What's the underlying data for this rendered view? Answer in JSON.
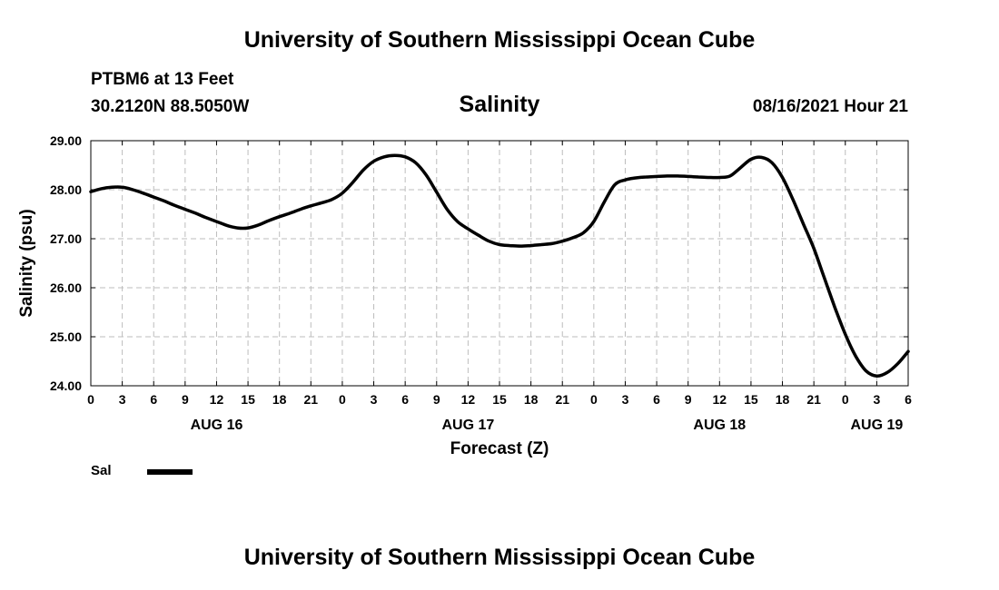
{
  "header": {
    "top_title": "University of Southern Mississippi Ocean Cube",
    "station": "PTBM6 at 13 Feet",
    "coords": "30.2120N  88.5050W",
    "variable_title": "Salinity",
    "timestamp": "08/16/2021 Hour 21",
    "bottom_title": "University of Southern Mississippi Ocean Cube"
  },
  "legend": {
    "label": "Sal",
    "color": "#000000"
  },
  "chart_data": {
    "type": "line",
    "title": "Salinity",
    "xlabel": "Forecast (Z)",
    "ylabel": "Salinity (psu)",
    "xlim": [
      0,
      78
    ],
    "ylim": [
      24,
      29
    ],
    "grid": true,
    "x_ticks": [
      0,
      3,
      6,
      9,
      12,
      15,
      18,
      21,
      24,
      27,
      30,
      33,
      36,
      39,
      42,
      45,
      48,
      51,
      54,
      57,
      60,
      63,
      66,
      69,
      72,
      75,
      78
    ],
    "x_tick_labels": [
      "0",
      "3",
      "6",
      "9",
      "12",
      "15",
      "18",
      "21",
      "0",
      "3",
      "6",
      "9",
      "12",
      "15",
      "18",
      "21",
      "0",
      "3",
      "6",
      "9",
      "12",
      "15",
      "18",
      "21",
      "0",
      "3",
      "6"
    ],
    "y_ticks": [
      24,
      25,
      26,
      27,
      28,
      29
    ],
    "y_tick_labels": [
      "24.00",
      "25.00",
      "26.00",
      "27.00",
      "28.00",
      "29.00"
    ],
    "day_labels": [
      {
        "label": "AUG 16",
        "x": 12
      },
      {
        "label": "AUG 17",
        "x": 36
      },
      {
        "label": "AUG 18",
        "x": 60
      },
      {
        "label": "AUG 19",
        "x": 75
      }
    ],
    "series": [
      {
        "name": "Sal",
        "x": [
          0,
          1,
          2,
          3,
          4,
          5,
          6,
          7,
          8,
          9,
          10,
          11,
          12,
          13,
          14,
          15,
          16,
          17,
          18,
          19,
          20,
          21,
          22,
          23,
          24,
          25,
          26,
          27,
          28,
          29,
          30,
          31,
          32,
          33,
          34,
          35,
          36,
          37,
          38,
          39,
          40,
          41,
          42,
          43,
          44,
          45,
          46,
          47,
          48,
          49,
          50,
          51,
          52,
          53,
          54,
          55,
          56,
          57,
          58,
          59,
          60,
          61,
          62,
          63,
          64,
          65,
          66,
          67,
          68,
          69,
          70,
          71,
          72,
          73,
          74,
          75,
          76,
          77,
          78
        ],
        "values": [
          27.96,
          28.02,
          28.05,
          28.05,
          28.0,
          27.93,
          27.85,
          27.77,
          27.68,
          27.6,
          27.52,
          27.43,
          27.35,
          27.27,
          27.22,
          27.22,
          27.28,
          27.37,
          27.45,
          27.52,
          27.6,
          27.67,
          27.73,
          27.8,
          27.93,
          28.15,
          28.4,
          28.58,
          28.67,
          28.7,
          28.67,
          28.55,
          28.3,
          27.95,
          27.6,
          27.35,
          27.2,
          27.07,
          26.95,
          26.88,
          26.86,
          26.85,
          26.86,
          26.88,
          26.9,
          26.95,
          27.02,
          27.12,
          27.35,
          27.75,
          28.1,
          28.2,
          28.24,
          28.26,
          28.27,
          28.28,
          28.28,
          28.27,
          28.26,
          28.25,
          28.25,
          28.28,
          28.45,
          28.62,
          28.66,
          28.55,
          28.25,
          27.8,
          27.3,
          26.8,
          26.2,
          25.6,
          25.05,
          24.6,
          24.3,
          24.2,
          24.27,
          24.45,
          24.7
        ]
      }
    ]
  }
}
